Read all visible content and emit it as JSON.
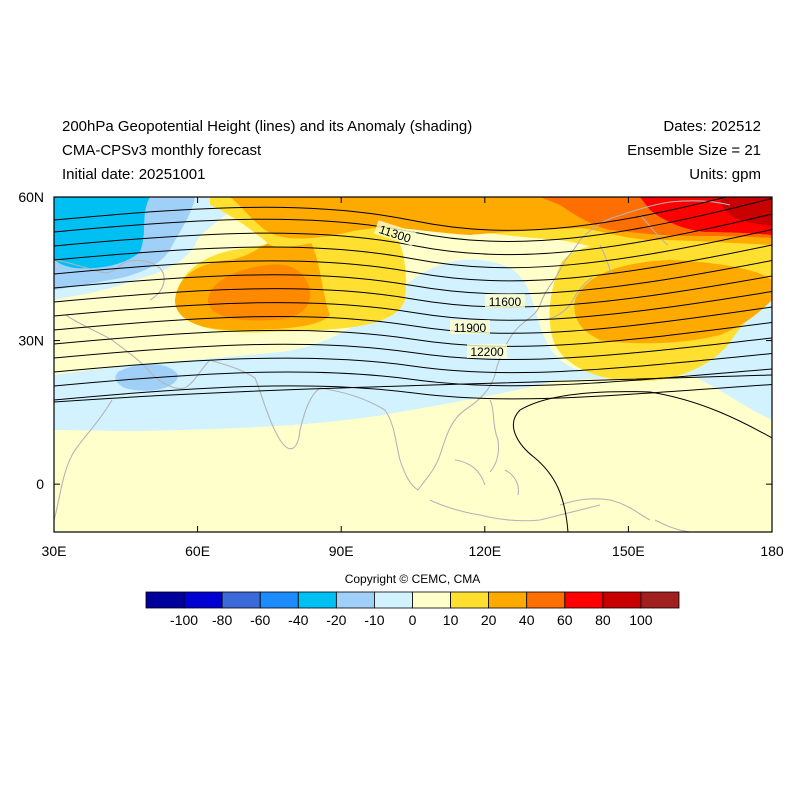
{
  "header": {
    "title": "200hPa Geopotential Height (lines) and its Anomaly (shading)",
    "model": "CMA-CPSv3 monthly forecast",
    "initial_date": "Initial date: 20251001",
    "dates": "Dates: 202512",
    "ensemble": "Ensemble Size = 21",
    "units": "Units: gpm"
  },
  "map": {
    "lon_ticks": [
      "30E",
      "60E",
      "90E",
      "120E",
      "150E",
      "180"
    ],
    "lat_ticks": [
      "60N",
      "30N",
      "0"
    ],
    "lon_range": [
      30,
      180
    ],
    "lat_range": [
      -10,
      60
    ],
    "contour_labels": [
      "11300",
      "11600",
      "11900",
      "12200"
    ],
    "coastline_color": "#b4b4b4",
    "contour_color": "#000000"
  },
  "colorbar": {
    "labels": [
      "-100",
      "-80",
      "-60",
      "-40",
      "-20",
      "-10",
      "0",
      "10",
      "20",
      "40",
      "60",
      "80",
      "100"
    ],
    "colors": [
      "#00009a",
      "#0000d2",
      "#3c6ad8",
      "#1e8cff",
      "#00bff3",
      "#a0d0f8",
      "#d2f2ff",
      "#ffffcc",
      "#ffdf2f",
      "#ffaa00",
      "#ff6e00",
      "#ff0000",
      "#c80000",
      "#a02020"
    ]
  },
  "footer": {
    "copyright": "Copyright © CEMC, CMA"
  }
}
